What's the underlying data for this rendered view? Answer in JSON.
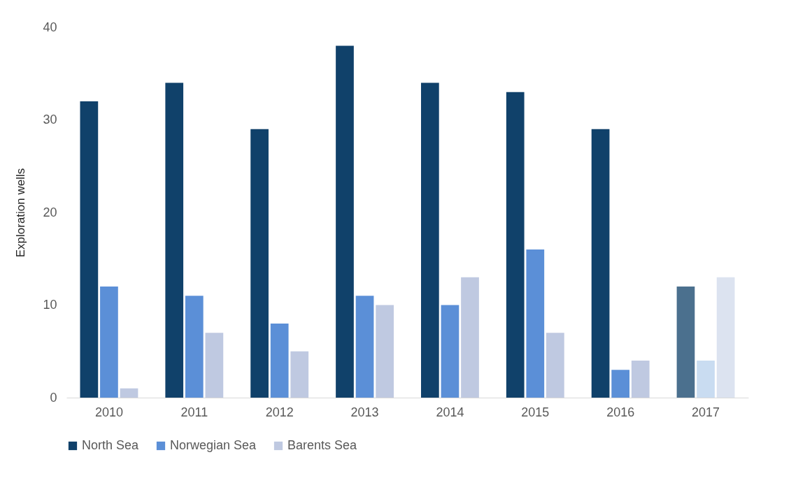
{
  "chart_data": {
    "type": "bar",
    "ylabel": "Exploration wells",
    "categories": [
      "2010",
      "2011",
      "2012",
      "2013",
      "2014",
      "2015",
      "2016",
      "2017"
    ],
    "series": [
      {
        "name": "North Sea",
        "color": "#10416a",
        "colors": [
          "#10416a",
          "#10416a",
          "#10416a",
          "#10416a",
          "#10416a",
          "#10416a",
          "#10416a",
          "#4b708e"
        ],
        "values": [
          32,
          34,
          29,
          38,
          34,
          33,
          29,
          12
        ]
      },
      {
        "name": "Norwegian Sea",
        "color": "#5b8fd7",
        "colors": [
          "#5b8fd7",
          "#5b8fd7",
          "#5b8fd7",
          "#5b8fd7",
          "#5b8fd7",
          "#5b8fd7",
          "#5b8fd7",
          "#c9dcf1"
        ],
        "values": [
          12,
          11,
          8,
          11,
          10,
          16,
          3,
          4
        ]
      },
      {
        "name": "Barents Sea",
        "color": "#bfc9e1",
        "colors": [
          "#bfc9e1",
          "#bfc9e1",
          "#bfc9e1",
          "#bfc9e1",
          "#bfc9e1",
          "#bfc9e1",
          "#bfc9e1",
          "#dce3f0"
        ],
        "values": [
          1,
          7,
          5,
          10,
          13,
          7,
          4,
          13
        ]
      }
    ],
    "ylim": [
      0,
      40
    ],
    "yticks": [
      0,
      10,
      20,
      30,
      40
    ],
    "grid": false,
    "legend": "bottom"
  }
}
